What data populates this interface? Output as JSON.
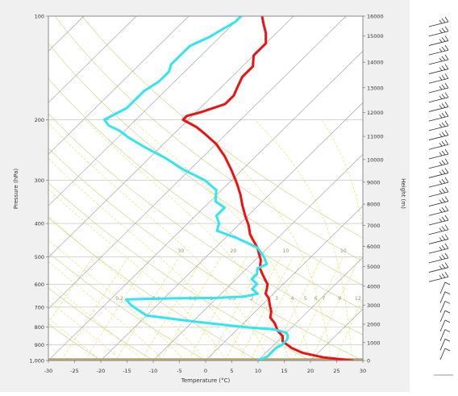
{
  "colors": {
    "panel_bg": "#f0f0f0",
    "plot_bg": "#ffffff",
    "temperature": "#ee1111",
    "dewpoint": "#33e5ef",
    "ground": "#b9a572",
    "isotherm": "#9b9b9b",
    "dry_adiabat": "#c9d07a",
    "moist_adiabat": "#dfe05a",
    "mixing_ratio": "#dfe05a",
    "isobar": "#bdbdbd",
    "wind_barb": "#303030"
  },
  "chart_data": {
    "type": "skew-t",
    "xlabel": "Temperature (°C)",
    "ylabel": "Pressure (hPa)",
    "y2label": "Height (m)",
    "x_range": [
      -30,
      30
    ],
    "y_range": [
      1000,
      100
    ],
    "y_scale": "log",
    "x_ticks": [
      "-30",
      "-25",
      "-20",
      "-15",
      "-10",
      "-5",
      "0",
      "5",
      "10",
      "15",
      "20",
      "25",
      "30"
    ],
    "x_tick_values": [
      -30,
      -25,
      -20,
      -15,
      -10,
      -5,
      0,
      5,
      10,
      15,
      20,
      25,
      30
    ],
    "y_ticks": [
      "1,000",
      "900",
      "800",
      "700",
      "600",
      "500",
      "400",
      "300",
      "200",
      "100"
    ],
    "y_tick_values": [
      1000,
      900,
      800,
      700,
      600,
      500,
      400,
      300,
      200,
      100
    ],
    "height_ticks": [
      "0",
      "1000",
      "2000",
      "3000",
      "4000",
      "5000",
      "6000",
      "7000",
      "8000",
      "9000",
      "10000",
      "11000",
      "12000",
      "13000",
      "14000",
      "15000",
      "16000"
    ],
    "height_tick_values": [
      0,
      1000,
      2000,
      3000,
      4000,
      5000,
      6000,
      7000,
      8000,
      9000,
      10000,
      11000,
      12000,
      13000,
      14000,
      15000,
      16000
    ],
    "theta_labels": [
      {
        "text": "30",
        "x_temp": -26,
        "p": 480
      },
      {
        "text": "20",
        "x_temp": -16,
        "p": 480
      },
      {
        "text": "10",
        "x_temp": -6,
        "p": 480
      },
      {
        "text": "10",
        "x_temp": 5,
        "p": 480
      },
      {
        "text": "20",
        "x_temp": 15,
        "p": 480
      },
      {
        "text": "30",
        "x_temp": 24,
        "p": 480
      }
    ],
    "mixing_ratio_labels": [
      {
        "text": "0.2",
        "x_temp": -28.5,
        "p": 660
      },
      {
        "text": "0.4",
        "x_temp": -21.5,
        "p": 660
      },
      {
        "text": "0.6",
        "x_temp": -14.5,
        "p": 660
      },
      {
        "text": "1",
        "x_temp": -11,
        "p": 660
      },
      {
        "text": "1.5",
        "x_temp": -7,
        "p": 660
      },
      {
        "text": "2",
        "x_temp": -3.2,
        "p": 660
      },
      {
        "text": "3",
        "x_temp": 1.5,
        "p": 660
      },
      {
        "text": "4",
        "x_temp": 4.5,
        "p": 660
      },
      {
        "text": "5",
        "x_temp": 7,
        "p": 660
      },
      {
        "text": "6",
        "x_temp": 9,
        "p": 660
      },
      {
        "text": "7",
        "x_temp": 10.5,
        "p": 660
      },
      {
        "text": "9",
        "x_temp": 13.5,
        "p": 660
      },
      {
        "text": "12",
        "x_temp": 17,
        "p": 660
      },
      {
        "text": "15",
        "x_temp": 20.5,
        "p": 660
      }
    ],
    "ground_level": {
      "p_top": 985
    },
    "series": [
      {
        "variable": "temperature",
        "points": [
          [
            28,
            1000
          ],
          [
            22,
            980
          ],
          [
            17,
            950
          ],
          [
            14,
            920
          ],
          [
            11,
            880
          ],
          [
            10,
            850
          ],
          [
            8,
            820
          ],
          [
            6,
            780
          ],
          [
            4,
            750
          ],
          [
            3,
            720
          ],
          [
            2,
            700
          ],
          [
            1,
            680
          ],
          [
            0,
            660
          ],
          [
            -1.5,
            640
          ],
          [
            -2,
            625
          ],
          [
            -3,
            600
          ],
          [
            -4.5,
            580
          ],
          [
            -6,
            560
          ],
          [
            -7.5,
            540
          ],
          [
            -9,
            510
          ],
          [
            -10.5,
            490
          ],
          [
            -12,
            470
          ],
          [
            -14,
            450
          ],
          [
            -16,
            430
          ],
          [
            -18,
            405
          ],
          [
            -20.5,
            380
          ],
          [
            -23,
            355
          ],
          [
            -25.5,
            330
          ],
          [
            -28.5,
            305
          ],
          [
            -32,
            280
          ],
          [
            -36,
            255
          ],
          [
            -40,
            235
          ],
          [
            -44,
            220
          ],
          [
            -47,
            210
          ],
          [
            -51,
            200
          ],
          [
            -51,
            195
          ],
          [
            -49,
            190
          ],
          [
            -46,
            180
          ],
          [
            -46,
            170
          ],
          [
            -47,
            160
          ],
          [
            -48,
            150
          ],
          [
            -48,
            140
          ],
          [
            -50,
            130
          ],
          [
            -50,
            120
          ],
          [
            -52,
            112
          ],
          [
            -54,
            106
          ],
          [
            -56,
            100
          ]
        ]
      },
      {
        "variable": "dewpoint",
        "points": [
          [
            10,
            1000
          ],
          [
            11,
            975
          ],
          [
            11,
            950
          ],
          [
            11,
            920
          ],
          [
            11.5,
            900
          ],
          [
            11.5,
            870
          ],
          [
            11,
            850
          ],
          [
            10,
            830
          ],
          [
            7,
            812
          ],
          [
            1,
            800
          ],
          [
            -10,
            770
          ],
          [
            -20,
            740
          ],
          [
            -23,
            710
          ],
          [
            -25,
            690
          ],
          [
            -27,
            665
          ],
          [
            -18,
            660
          ],
          [
            -10,
            658
          ],
          [
            -5,
            652
          ],
          [
            -3,
            640
          ],
          [
            -5,
            620
          ],
          [
            -5,
            600
          ],
          [
            -7,
            580
          ],
          [
            -7,
            560
          ],
          [
            -8,
            540
          ],
          [
            -7,
            525
          ],
          [
            -9,
            500
          ],
          [
            -12,
            470
          ],
          [
            -18,
            440
          ],
          [
            -23,
            420
          ],
          [
            -24,
            400
          ],
          [
            -26,
            380
          ],
          [
            -26,
            360
          ],
          [
            -29,
            345
          ],
          [
            -31,
            320
          ],
          [
            -35,
            300
          ],
          [
            -41,
            280
          ],
          [
            -47,
            258
          ],
          [
            -53,
            240
          ],
          [
            -58,
            225
          ],
          [
            -61,
            215
          ],
          [
            -64,
            208
          ],
          [
            -66,
            200
          ],
          [
            -65,
            192
          ],
          [
            -64,
            185
          ],
          [
            -64,
            175
          ],
          [
            -64,
            165
          ],
          [
            -63,
            155
          ],
          [
            -63,
            145
          ],
          [
            -64,
            138
          ],
          [
            -64,
            130
          ],
          [
            -64,
            122
          ],
          [
            -62,
            115
          ],
          [
            -61,
            109
          ],
          [
            -60,
            104
          ],
          [
            -60,
            100
          ]
        ]
      }
    ],
    "wind_barb_count": 36
  }
}
